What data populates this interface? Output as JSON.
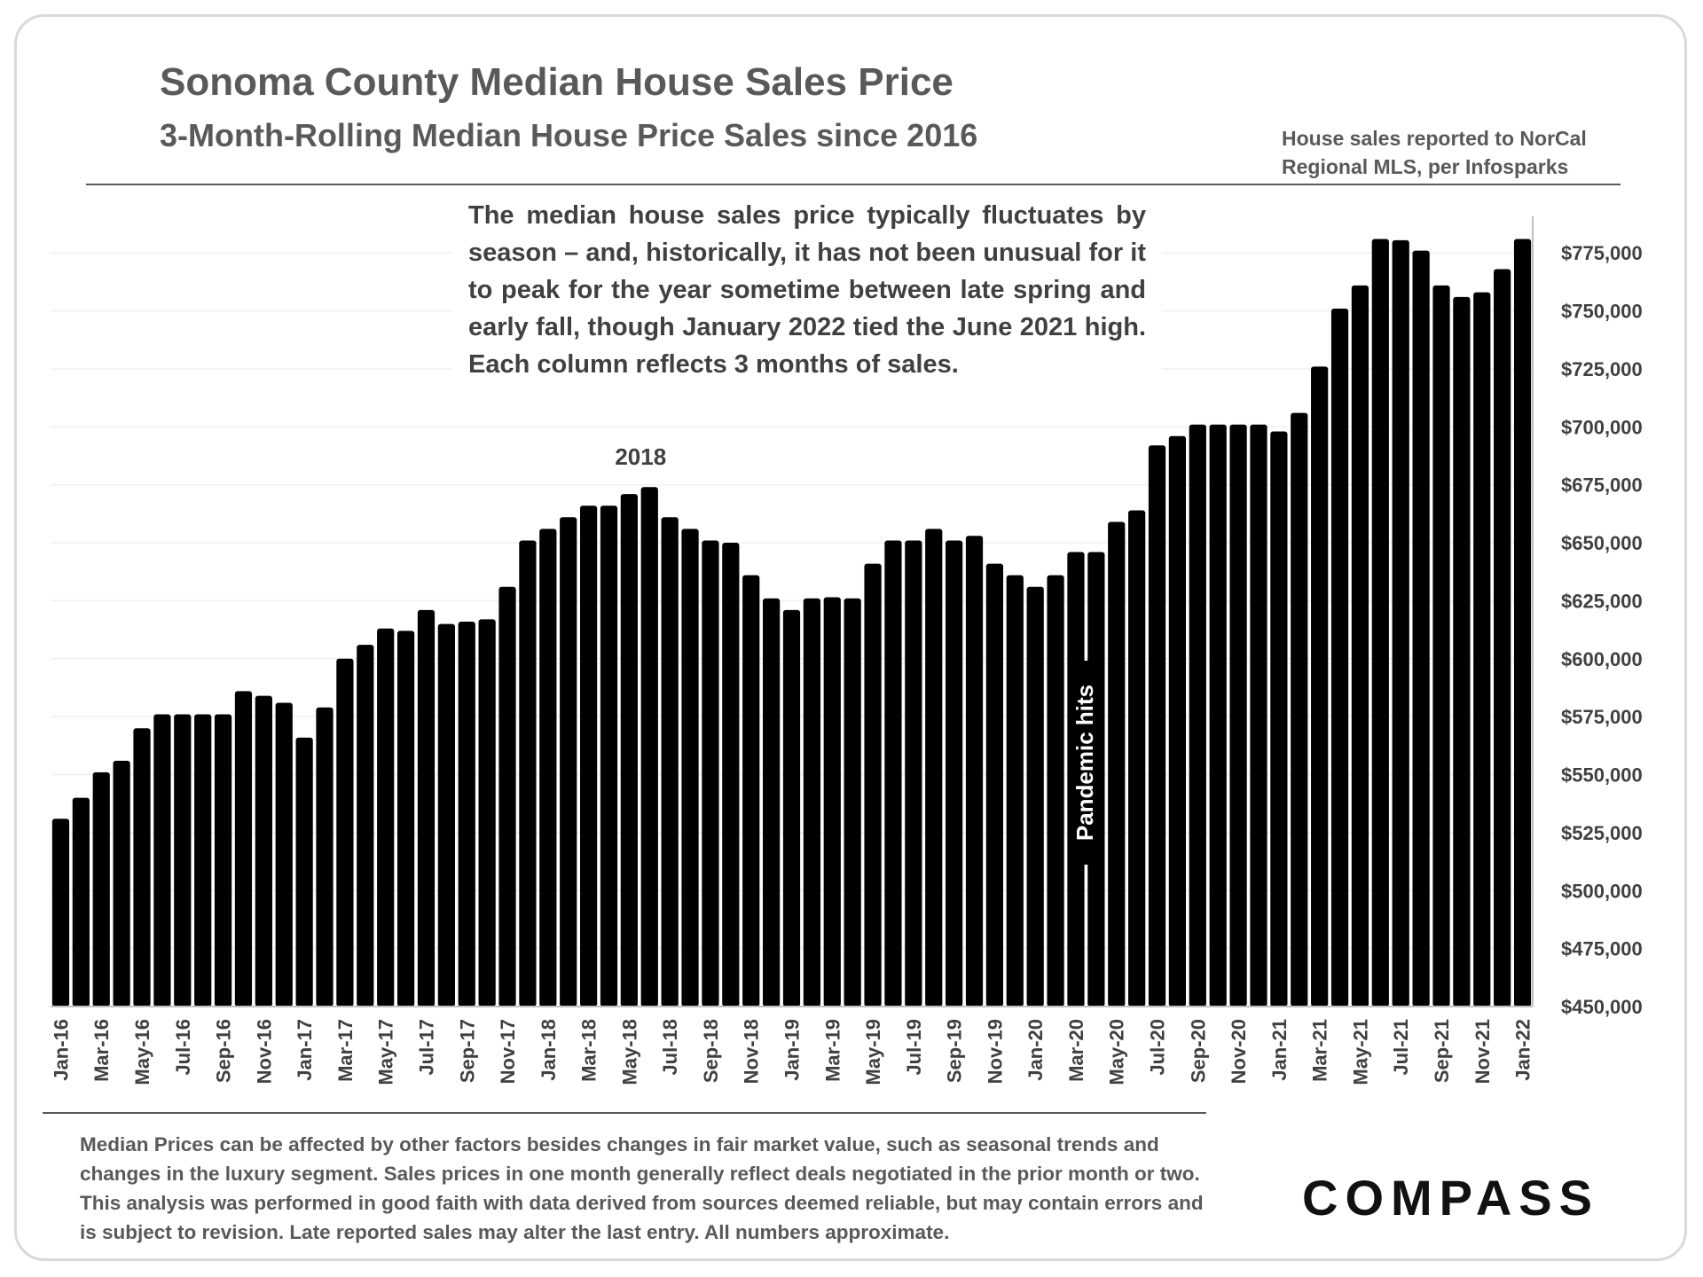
{
  "header": {
    "title": "Sonoma County Median House Sales Price",
    "subtitle": "3-Month-Rolling Median House Price Sales since 2016",
    "source": "House sales reported to NorCal Regional MLS, per Infosparks"
  },
  "note": "The median house sales price typically fluctuates by season – and, historically, it has not been unusual for it to peak for the year sometime between late spring and  early fall, though January 2022 tied the June 2021 high. Each column reflects 3 months of sales.",
  "footnote": "Median Prices can be affected by other factors besides changes in fair market value, such as seasonal trends and changes in the luxury segment. Sales prices in one month generally reflect deals negotiated in the prior month or two. This analysis was performed in good faith with data derived from sources deemed reliable, but may contain errors and is subject to revision. Late reported sales may alter the last entry. All numbers approximate.",
  "logo": "COMPASS",
  "chart_data": {
    "type": "bar",
    "title": "Sonoma County Median House Sales Price",
    "subtitle": "3-Month-Rolling Median House Price Sales since 2016",
    "bar_color": "#000000",
    "categories": [
      "Jan-16",
      "Feb-16",
      "Mar-16",
      "Apr-16",
      "May-16",
      "Jun-16",
      "Jul-16",
      "Aug-16",
      "Sep-16",
      "Oct-16",
      "Nov-16",
      "Dec-16",
      "Jan-17",
      "Feb-17",
      "Mar-17",
      "Apr-17",
      "May-17",
      "Jun-17",
      "Jul-17",
      "Aug-17",
      "Sep-17",
      "Oct-17",
      "Nov-17",
      "Dec-17",
      "Jan-18",
      "Feb-18",
      "Mar-18",
      "Apr-18",
      "May-18",
      "Jun-18",
      "Jul-18",
      "Aug-18",
      "Sep-18",
      "Oct-18",
      "Nov-18",
      "Dec-18",
      "Jan-19",
      "Feb-19",
      "Mar-19",
      "Apr-19",
      "May-19",
      "Jun-19",
      "Jul-19",
      "Aug-19",
      "Sep-19",
      "Oct-19",
      "Nov-19",
      "Dec-19",
      "Jan-20",
      "Feb-20",
      "Mar-20",
      "Apr-20",
      "May-20",
      "Jun-20",
      "Jul-20",
      "Aug-20",
      "Sep-20",
      "Oct-20",
      "Nov-20",
      "Dec-20",
      "Jan-21",
      "Feb-21",
      "Mar-21",
      "Apr-21",
      "May-21",
      "Jun-21",
      "Jul-21",
      "Aug-21",
      "Sep-21",
      "Oct-21",
      "Nov-21",
      "Dec-21",
      "Jan-22"
    ],
    "values": [
      531000,
      540000,
      551000,
      556000,
      570000,
      576000,
      576000,
      576000,
      576000,
      586000,
      584000,
      581000,
      566000,
      579000,
      600000,
      606000,
      613000,
      612000,
      621000,
      615000,
      616000,
      617000,
      631000,
      651000,
      656000,
      661000,
      666000,
      666000,
      671000,
      674000,
      661000,
      656000,
      651000,
      650000,
      636000,
      626000,
      621000,
      626000,
      626500,
      626000,
      641000,
      651000,
      651000,
      656000,
      651000,
      653000,
      641000,
      636000,
      631000,
      636000,
      646000,
      646000,
      659000,
      664000,
      692000,
      696000,
      701000,
      701000,
      701000,
      701000,
      698000,
      706000,
      726000,
      751000,
      761000,
      781000,
      780500,
      776000,
      761000,
      756000,
      758000,
      768000,
      781000
    ],
    "x_tick_labels": [
      "Jan-16",
      "Mar-16",
      "May-16",
      "Jul-16",
      "Sep-16",
      "Nov-16",
      "Jan-17",
      "Mar-17",
      "May-17",
      "Jul-17",
      "Sep-17",
      "Nov-17",
      "Jan-18",
      "Mar-18",
      "May-18",
      "Jul-18",
      "Sep-18",
      "Nov-18",
      "Jan-19",
      "Mar-19",
      "May-19",
      "Jul-19",
      "Sep-19",
      "Nov-19",
      "Jan-20",
      "Mar-20",
      "May-20",
      "Jul-20",
      "Sep-20",
      "Nov-20",
      "Jan-21",
      "Mar-21",
      "May-21",
      "Jul-21",
      "Sep-21",
      "Nov-21",
      "Jan-22"
    ],
    "y_ticks": [
      450000,
      475000,
      500000,
      525000,
      550000,
      575000,
      600000,
      625000,
      650000,
      675000,
      700000,
      725000,
      750000,
      775000
    ],
    "y_tick_labels": [
      "$450,000",
      "$475,000",
      "$500,000",
      "$525,000",
      "$550,000",
      "$575,000",
      "$600,000",
      "$625,000",
      "$650,000",
      "$675,000",
      "$700,000",
      "$725,000",
      "$750,000",
      "$775,000"
    ],
    "ylim": [
      450000,
      790000
    ],
    "y_axis_side": "right",
    "grid": true,
    "annotations": [
      {
        "text": "2018",
        "category": "Jun-18"
      },
      {
        "text": "Pandemic hits",
        "category": "Mar-20"
      }
    ]
  }
}
